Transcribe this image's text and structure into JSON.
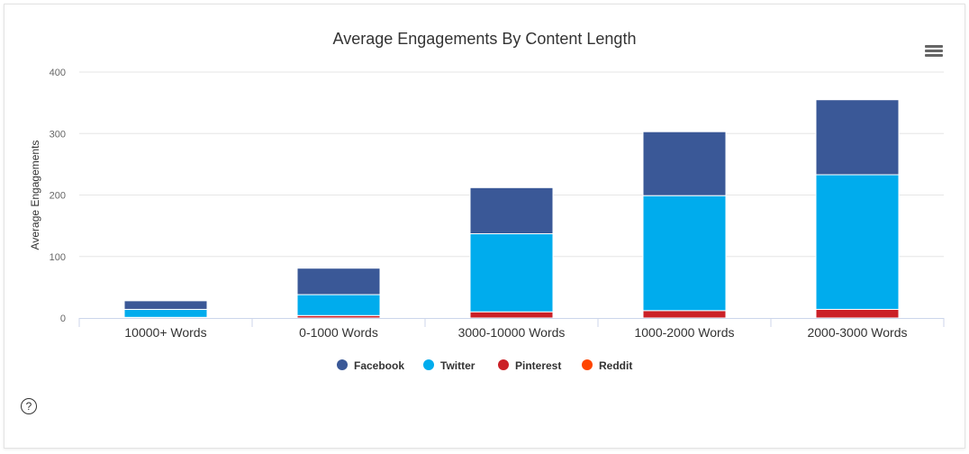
{
  "chart_data": {
    "type": "bar",
    "stacked": true,
    "title": "Average Engagements By Content Length",
    "xlabel": "",
    "ylabel": "Average Engagements",
    "ylim": [
      0,
      400
    ],
    "yticks": [
      "0",
      "100",
      "200",
      "300",
      "400"
    ],
    "categories": [
      "10000+ Words",
      "0-1000 Words",
      "3000-10000 Words",
      "1000-2000 Words",
      "2000-3000 Words"
    ],
    "series": [
      {
        "name": "Facebook",
        "color": "#3a5897",
        "values": [
          14,
          43,
          75,
          104,
          122
        ]
      },
      {
        "name": "Twitter",
        "color": "#00aced",
        "values": [
          13,
          34,
          127,
          187,
          219
        ]
      },
      {
        "name": "Pinterest",
        "color": "#cb2027",
        "values": [
          1,
          4,
          10,
          12,
          14
        ]
      },
      {
        "name": "Reddit",
        "color": "#ff4500",
        "values": [
          0,
          0,
          0,
          0,
          0
        ]
      }
    ],
    "grid": true,
    "legend_position": "bottom-center"
  },
  "toolbar": {
    "menu_icon": "hamburger-menu-icon"
  },
  "help": {
    "label": "?",
    "icon": "help-circle-icon"
  }
}
